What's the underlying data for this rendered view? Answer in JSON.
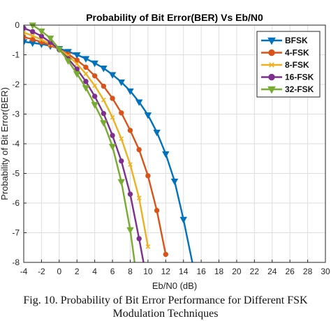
{
  "chart_data": {
    "type": "line",
    "title": "Probability of Bit Error(BER) Vs Eb/N0",
    "xlabel": "Eb/N0 (dB)",
    "ylabel": "Probability of Bit Error(BER)",
    "xlim": [
      -4,
      30
    ],
    "ylim": [
      -8,
      0
    ],
    "xticks": [
      "-4",
      "-2",
      "0",
      "2",
      "4",
      "6",
      "8",
      "10",
      "12",
      "14",
      "16",
      "18",
      "20",
      "22",
      "24",
      "26",
      "28",
      "30"
    ],
    "yticks": [
      "0",
      "-1",
      "-2",
      "-3",
      "-4",
      "-5",
      "-6",
      "-7",
      "-8"
    ],
    "grid": true,
    "legend_position": "top-right",
    "series": [
      {
        "name": "BFSK",
        "color": "#0072BD",
        "marker": "triangle-down",
        "x": [
          -4,
          -3,
          -2,
          -1,
          0,
          1,
          2,
          3,
          4,
          5,
          6,
          7,
          8,
          9,
          10,
          11,
          12,
          13,
          14,
          15
        ],
        "y": [
          -0.56,
          -0.6,
          -0.64,
          -0.7,
          -0.79,
          -0.89,
          -1.0,
          -1.13,
          -1.28,
          -1.45,
          -1.67,
          -1.92,
          -2.22,
          -2.59,
          -3.03,
          -3.61,
          -4.34,
          -5.26,
          -6.55,
          -8.0
        ]
      },
      {
        "name": "4-FSK",
        "color": "#D95319",
        "marker": "circle",
        "x": [
          -4,
          -3,
          -2,
          -1,
          0,
          1,
          2,
          3,
          4,
          5,
          6,
          7,
          8,
          9,
          10,
          11,
          12
        ],
        "y": [
          -0.4,
          -0.48,
          -0.57,
          -0.68,
          -0.81,
          -0.98,
          -1.18,
          -1.42,
          -1.71,
          -2.06,
          -2.47,
          -2.96,
          -3.55,
          -4.2,
          -5.08,
          -6.25,
          -7.73
        ]
      },
      {
        "name": "8-FSK",
        "color": "#EDB120",
        "marker": "x",
        "x": [
          -4,
          -3,
          -2,
          -1,
          0,
          1,
          2,
          3,
          4,
          5,
          6,
          7,
          8,
          9,
          10
        ],
        "y": [
          -0.25,
          -0.36,
          -0.49,
          -0.64,
          -0.81,
          -1.03,
          -1.31,
          -1.64,
          -2.04,
          -2.52,
          -3.11,
          -3.83,
          -4.7,
          -5.83,
          -7.47
        ]
      },
      {
        "name": "16-FSK",
        "color": "#7E2F8E",
        "marker": "circle",
        "x": [
          -4,
          -3,
          -2,
          -1,
          0,
          1,
          2,
          3,
          4,
          5,
          6,
          7,
          8,
          9,
          9.5
        ],
        "y": [
          -0.1,
          -0.22,
          -0.37,
          -0.58,
          -0.83,
          -1.13,
          -1.48,
          -1.9,
          -2.4,
          -2.98,
          -3.72,
          -4.58,
          -5.7,
          -7.2,
          -8.0
        ]
      },
      {
        "name": "32-FSK",
        "color": "#77AC30",
        "marker": "triangle-down",
        "x": [
          -3,
          -2,
          -1,
          0,
          1,
          2,
          3,
          4,
          5,
          6,
          7,
          8,
          8.5
        ],
        "y": [
          0.0,
          -0.2,
          -0.44,
          -0.81,
          -1.2,
          -1.64,
          -2.11,
          -2.68,
          -3.29,
          -4.09,
          -5.28,
          -6.9,
          -8.0
        ]
      }
    ]
  },
  "caption": {
    "line1": "Fig. 10. Probability of Bit Error Performance for Different FSK",
    "line2": "Modulation Techniques"
  }
}
